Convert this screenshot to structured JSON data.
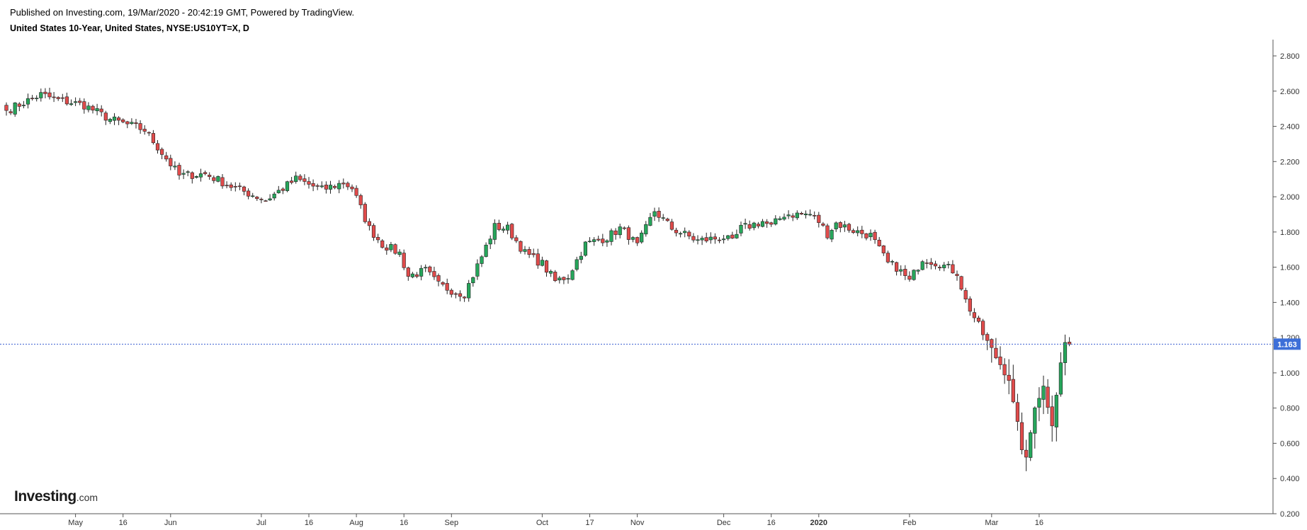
{
  "header": {
    "published": "Published on Investing.com, 19/Mar/2020 - 20:42:19 GMT, Powered by TradingView.",
    "symbol": "United States 10-Year, United States, NYSE:US10YT=X, D"
  },
  "logo": {
    "main": "Investing",
    "suffix": ".com"
  },
  "colors": {
    "up": "#26a65b",
    "down": "#e04b4b",
    "price_line": "#3d5fd1",
    "price_badge": "#3d6fd8"
  },
  "chart_data": {
    "type": "candlestick",
    "ylim": [
      0.2,
      2.9
    ],
    "y_ticks": [
      "0.200",
      "0.400",
      "0.600",
      "0.800",
      "1.000",
      "1.200",
      "1.400",
      "1.600",
      "1.800",
      "2.000",
      "2.200",
      "2.400",
      "2.600",
      "2.800"
    ],
    "x_ticks": [
      {
        "label": "May",
        "bar": 16,
        "bold": false
      },
      {
        "label": "16",
        "bar": 27,
        "bold": false
      },
      {
        "label": "Jun",
        "bar": 38,
        "bold": false
      },
      {
        "label": "Jul",
        "bar": 59,
        "bold": false
      },
      {
        "label": "16",
        "bar": 70,
        "bold": false
      },
      {
        "label": "Aug",
        "bar": 81,
        "bold": false
      },
      {
        "label": "16",
        "bar": 92,
        "bold": false
      },
      {
        "label": "Sep",
        "bar": 103,
        "bold": false
      },
      {
        "label": "Oct",
        "bar": 124,
        "bold": false
      },
      {
        "label": "17",
        "bar": 135,
        "bold": false
      },
      {
        "label": "Nov",
        "bar": 146,
        "bold": false
      },
      {
        "label": "Dec",
        "bar": 166,
        "bold": false
      },
      {
        "label": "16",
        "bar": 177,
        "bold": false
      },
      {
        "label": "2020",
        "bar": 188,
        "bold": true
      },
      {
        "label": "Feb",
        "bar": 209,
        "bold": false
      },
      {
        "label": "Mar",
        "bar": 228,
        "bold": false
      },
      {
        "label": "16",
        "bar": 239,
        "bold": false
      }
    ],
    "last_price": 1.163,
    "last_price_label": "1.163",
    "anchors": [
      [
        0,
        2.49
      ],
      [
        8,
        2.58
      ],
      [
        12,
        2.55
      ],
      [
        18,
        2.52
      ],
      [
        24,
        2.44
      ],
      [
        32,
        2.38
      ],
      [
        40,
        2.12
      ],
      [
        46,
        2.13
      ],
      [
        52,
        2.06
      ],
      [
        60,
        1.98
      ],
      [
        67,
        2.1
      ],
      [
        73,
        2.04
      ],
      [
        78,
        2.08
      ],
      [
        80,
        2.05
      ],
      [
        84,
        1.82
      ],
      [
        87,
        1.73
      ],
      [
        91,
        1.68
      ],
      [
        93,
        1.55
      ],
      [
        97,
        1.58
      ],
      [
        100,
        1.5
      ],
      [
        104,
        1.46
      ],
      [
        106,
        1.45
      ],
      [
        110,
        1.66
      ],
      [
        113,
        1.83
      ],
      [
        116,
        1.82
      ],
      [
        120,
        1.68
      ],
      [
        124,
        1.62
      ],
      [
        127,
        1.52
      ],
      [
        130,
        1.55
      ],
      [
        134,
        1.73
      ],
      [
        139,
        1.77
      ],
      [
        142,
        1.82
      ],
      [
        144,
        1.78
      ],
      [
        146,
        1.72
      ],
      [
        150,
        1.92
      ],
      [
        154,
        1.82
      ],
      [
        160,
        1.75
      ],
      [
        166,
        1.77
      ],
      [
        168,
        1.74
      ],
      [
        170,
        1.82
      ],
      [
        175,
        1.86
      ],
      [
        177,
        1.83
      ],
      [
        180,
        1.9
      ],
      [
        186,
        1.9
      ],
      [
        188,
        1.86
      ],
      [
        190,
        1.79
      ],
      [
        192,
        1.85
      ],
      [
        197,
        1.8
      ],
      [
        200,
        1.78
      ],
      [
        204,
        1.62
      ],
      [
        206,
        1.6
      ],
      [
        209,
        1.52
      ],
      [
        212,
        1.65
      ],
      [
        216,
        1.62
      ],
      [
        220,
        1.57
      ],
      [
        222,
        1.41
      ],
      [
        226,
        1.22
      ],
      [
        228,
        1.13
      ],
      [
        232,
        0.97
      ],
      [
        233,
        0.82
      ],
      [
        235,
        0.58
      ],
      [
        236,
        0.5
      ],
      [
        238,
        0.82
      ],
      [
        240,
        0.92
      ],
      [
        242,
        0.72
      ],
      [
        244,
        1.05
      ],
      [
        245,
        1.17
      ],
      [
        246,
        1.163
      ]
    ]
  }
}
